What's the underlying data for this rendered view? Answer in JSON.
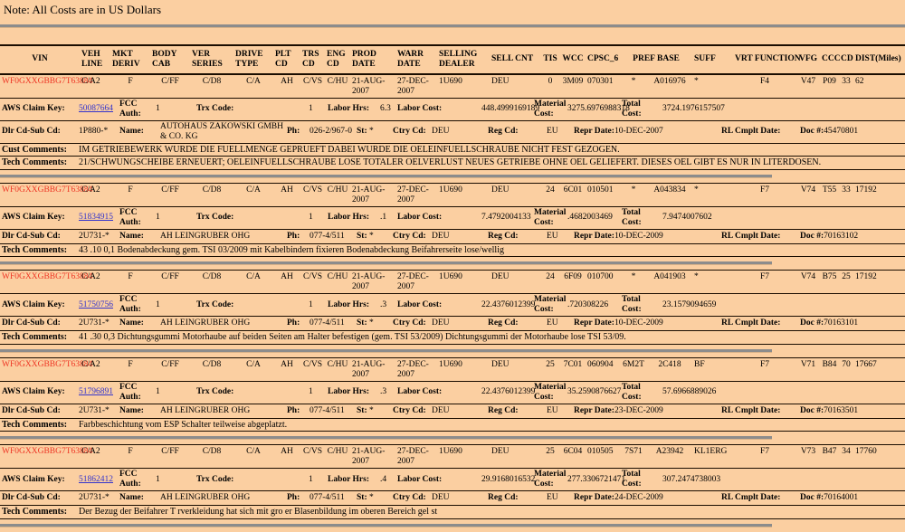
{
  "note": "Note: All Costs are in US Dollars",
  "colors": {
    "background": "#fbcfa1",
    "row_line": "#1a0d00",
    "separator_gray": "#8c8c8c",
    "vin_red": "#ee3524",
    "claim_link_blue": "#3333cc"
  },
  "header": {
    "vin": "VIN",
    "veh_line": "VEH LINE",
    "mkt_deriv": "MKT DERIV",
    "body_cab": "BODY CAB",
    "ver_series": "VER SERIES",
    "drive_type": "DRIVE TYPE",
    "plt_cd": "PLT CD",
    "trs_cd": "TRS CD",
    "eng_cd": "ENG CD",
    "prod_date": "PROD DATE",
    "warr_date": "WARR DATE",
    "selling_dealer": "SELLING DEALER",
    "sell_cnt": "SELL CNT",
    "tis": "TIS",
    "wcc": "WCC",
    "cpsc_6": "CPSC_6",
    "pref_base": "PREF BASE",
    "suff": "SUFF",
    "vrt_function": "VRT FUNCTION",
    "vfg": "VFG",
    "ccc": "CCC",
    "cd": "CD",
    "dist_miles": "DIST(Miles)"
  },
  "labels": {
    "aws_claim_key": "AWS Claim Key:",
    "fcc_auth": "FCC Auth:",
    "trx_code": "Trx Code:",
    "labor_hrs": "Labor Hrs:",
    "labor_cost": "Labor Cost:",
    "material_cost": "Material Cost:",
    "total_cost": "Total Cost:",
    "dlr_cd_sub_cd": "Dlr Cd-Sub Cd:",
    "name": "Name:",
    "ph": "Ph:",
    "st": "St:",
    "ctry_cd": "Ctry Cd:",
    "reg_cd": "Reg Cd:",
    "repr_date": "Repr Date:",
    "rl_cmplt_date": "RL Cmplt Date:",
    "doc_num": "Doc #:",
    "cust_comments": "Cust Comments:",
    "tech_comments": "Tech Comments:"
  },
  "records": [
    {
      "vin": "WF0GXXGBBG7T63884",
      "veh_line": "C/A2",
      "mkt_deriv": "F",
      "body_cab": "C/FF",
      "ver_series": "C/D8",
      "drive_type": "C/A",
      "plt_cd": "AH",
      "trs_cd": "C/VS",
      "eng_cd": "C/HU",
      "prod_date": "21-AUG-2007",
      "warr_date": "27-DEC-2007",
      "selling_dealer": "1U690",
      "sell_cnt": "DEU",
      "tis": "0",
      "wcc": "3M09",
      "cpsc_6": "070301",
      "pref": "*",
      "base": "A016976",
      "suff": "*",
      "vrt_function": "F4",
      "vfg": "V47",
      "ccc": "P09",
      "cd": "33",
      "dist_miles": "62",
      "claim_key": "50087664",
      "fcc_auth": "1",
      "trx_code": "1",
      "labor_hrs": "6.3",
      "labor_cost": "448.4999169189",
      "material_cost": "3275.6976988318",
      "total_cost": "3724.1976157507",
      "dlr_cd_sub_cd": "1P880-*",
      "name": "AUTOHAUS ZAKOWSKI GMBH & CO. KG",
      "ph": "026-2/967-0",
      "st": "*",
      "ctry_cd": "DEU",
      "reg_cd": "EU",
      "repr_date": "10-DEC-2007",
      "doc_num": "45470801",
      "cust_comments": "IM GETRIEBEWERK WURDE DIE FUELLMENGE GEPRUEFT DABEI WURDE DIE OELEINFUELLSCHRAUBE NICHT FEST GEZOGEN.",
      "tech_comments": "21/SCHWUNGSCHEIBE ERNEUERT; OELEINFUELLSCHRAUBE LOSE TOTALER OELVERLUST NEUES GETRIEBE OHNE OEL GELIEFERT. DIESES OEL GIBT ES NUR IN LITERDOSEN."
    },
    {
      "vin": "WF0GXXGBBG7T63884",
      "veh_line": "C/A2",
      "mkt_deriv": "F",
      "body_cab": "C/FF",
      "ver_series": "C/D8",
      "drive_type": "C/A",
      "plt_cd": "AH",
      "trs_cd": "C/VS",
      "eng_cd": "C/HU",
      "prod_date": "21-AUG-2007",
      "warr_date": "27-DEC-2007",
      "selling_dealer": "1U690",
      "sell_cnt": "DEU",
      "tis": "24",
      "wcc": "6C01",
      "cpsc_6": "010501",
      "pref": "*",
      "base": "A043834",
      "suff": "*",
      "vrt_function": "F7",
      "vfg": "V74",
      "ccc": "T55",
      "cd": "33",
      "dist_miles": "17192",
      "claim_key": "51834915",
      "fcc_auth": "1",
      "trx_code": "1",
      "labor_hrs": ".1",
      "labor_cost": "7.4792004133",
      "material_cost": ".4682003469",
      "total_cost": "7.9474007602",
      "dlr_cd_sub_cd": "2U731-*",
      "name": "AH LEINGRUBER OHG",
      "ph": "077-4/511",
      "st": "*",
      "ctry_cd": "DEU",
      "reg_cd": "EU",
      "repr_date": "10-DEC-2009",
      "doc_num": "70163102",
      "tech_comments": "43 .10 0,1 Bodenabdeckung gem. TSI 03/2009 mit Kabelbindern fixieren Bodenabdeckung Beifahrerseite lose/wellig"
    },
    {
      "vin": "WF0GXXGBBG7T63884",
      "veh_line": "C/A2",
      "mkt_deriv": "F",
      "body_cab": "C/FF",
      "ver_series": "C/D8",
      "drive_type": "C/A",
      "plt_cd": "AH",
      "trs_cd": "C/VS",
      "eng_cd": "C/HU",
      "prod_date": "21-AUG-2007",
      "warr_date": "27-DEC-2007",
      "selling_dealer": "1U690",
      "sell_cnt": "DEU",
      "tis": "24",
      "wcc": "6F09",
      "cpsc_6": "010700",
      "pref": "*",
      "base": "A041903",
      "suff": "*",
      "vrt_function": "F7",
      "vfg": "V74",
      "ccc": "B75",
      "cd": "25",
      "dist_miles": "17192",
      "claim_key": "51750756",
      "fcc_auth": "1",
      "trx_code": "1",
      "labor_hrs": ".3",
      "labor_cost": "22.4376012399",
      "material_cost": ".720308226",
      "total_cost": "23.1579094659",
      "dlr_cd_sub_cd": "2U731-*",
      "name": "AH LEINGRUBER OHG",
      "ph": "077-4/511",
      "st": "*",
      "ctry_cd": "DEU",
      "reg_cd": "EU",
      "repr_date": "10-DEC-2009",
      "doc_num": "70163101",
      "tech_comments": "41 .30 0,3 Dichtungsgummi Motorhaube auf beiden Seiten am Halter befestigen (gem. TSI 53/2009) Dichtungsgummi der Motorhaube lose TSI 53/09."
    },
    {
      "vin": "WF0GXXGBBG7T63884",
      "veh_line": "C/A2",
      "mkt_deriv": "F",
      "body_cab": "C/FF",
      "ver_series": "C/D8",
      "drive_type": "C/A",
      "plt_cd": "AH",
      "trs_cd": "C/VS",
      "eng_cd": "C/HU",
      "prod_date": "21-AUG-2007",
      "warr_date": "27-DEC-2007",
      "selling_dealer": "1U690",
      "sell_cnt": "DEU",
      "tis": "25",
      "wcc": "7C01",
      "cpsc_6": "060904",
      "pref": "6M2T",
      "base": "2C418",
      "suff": "BF",
      "vrt_function": "F7",
      "vfg": "V71",
      "ccc": "B84",
      "cd": "70",
      "dist_miles": "17667",
      "claim_key": "51796891",
      "fcc_auth": "1",
      "trx_code": "1",
      "labor_hrs": ".3",
      "labor_cost": "22.4376012399",
      "material_cost": "35.2590876627",
      "total_cost": "57.6966889026",
      "dlr_cd_sub_cd": "2U731-*",
      "name": "AH LEINGRUBER OHG",
      "ph": "077-4/511",
      "st": "*",
      "ctry_cd": "DEU",
      "reg_cd": "EU",
      "repr_date": "23-DEC-2009",
      "doc_num": "70163501",
      "tech_comments": "Farbbeschichtung vom ESP Schalter teilweise abgeplatzt."
    },
    {
      "vin": "WF0GXXGBBG7T63884",
      "veh_line": "C/A2",
      "mkt_deriv": "F",
      "body_cab": "C/FF",
      "ver_series": "C/D8",
      "drive_type": "C/A",
      "plt_cd": "AH",
      "trs_cd": "C/VS",
      "eng_cd": "C/HU",
      "prod_date": "21-AUG-2007",
      "warr_date": "27-DEC-2007",
      "selling_dealer": "1U690",
      "sell_cnt": "DEU",
      "tis": "25",
      "wcc": "6C04",
      "cpsc_6": "010505",
      "pref": "7S71",
      "base": "A23942",
      "suff": "KL1ERG",
      "vrt_function": "F7",
      "vfg": "V73",
      "ccc": "B47",
      "cd": "34",
      "dist_miles": "17760",
      "claim_key": "51862412",
      "fcc_auth": "1",
      "trx_code": "1",
      "labor_hrs": ".4",
      "labor_cost": "29.9168016532",
      "material_cost": "277.3306721471",
      "total_cost": "307.2474738003",
      "dlr_cd_sub_cd": "2U731-*",
      "name": "AH LEINGRUBER OHG",
      "ph": "077-4/511",
      "st": "*",
      "ctry_cd": "DEU",
      "reg_cd": "EU",
      "repr_date": "24-DEC-2009",
      "doc_num": "70164001",
      "tech_comments": "Der Bezug der Beifahrer T rverkleidung hat sich mit gro er Blasenbildung im oberen Bereich gel st"
    }
  ]
}
